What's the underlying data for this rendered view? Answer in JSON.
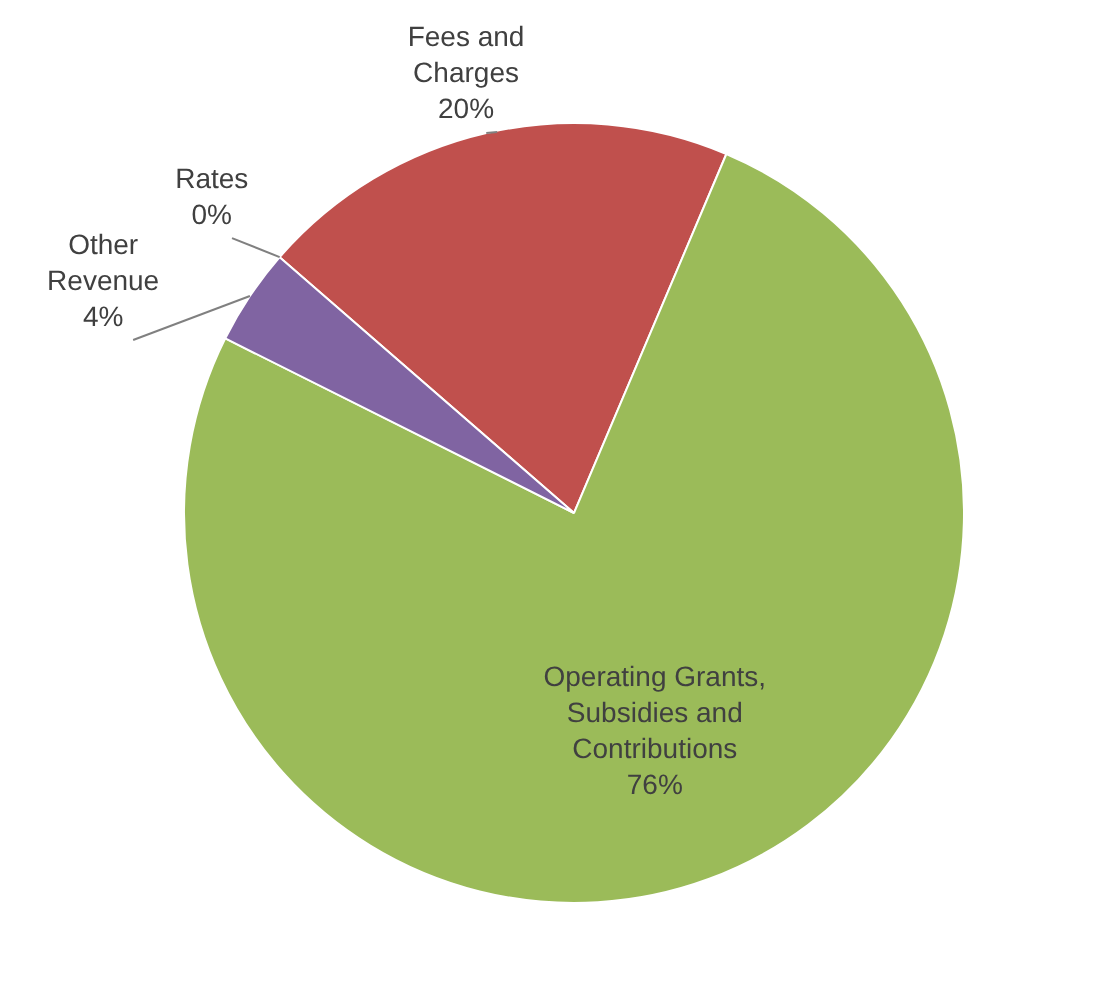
{
  "chart_data": {
    "type": "pie",
    "categories": [
      "Rates",
      "Fees and Charges",
      "Operating Grants, Subsidies and Contributions",
      "Other Revenue"
    ],
    "values": [
      0,
      20,
      76,
      4
    ],
    "colors": [
      "#4f81bd",
      "#c0504d",
      "#9bbb59",
      "#8064a2"
    ],
    "value_labels": [
      "0%",
      "20%",
      "76%",
      "4%"
    ],
    "legend": false
  }
}
